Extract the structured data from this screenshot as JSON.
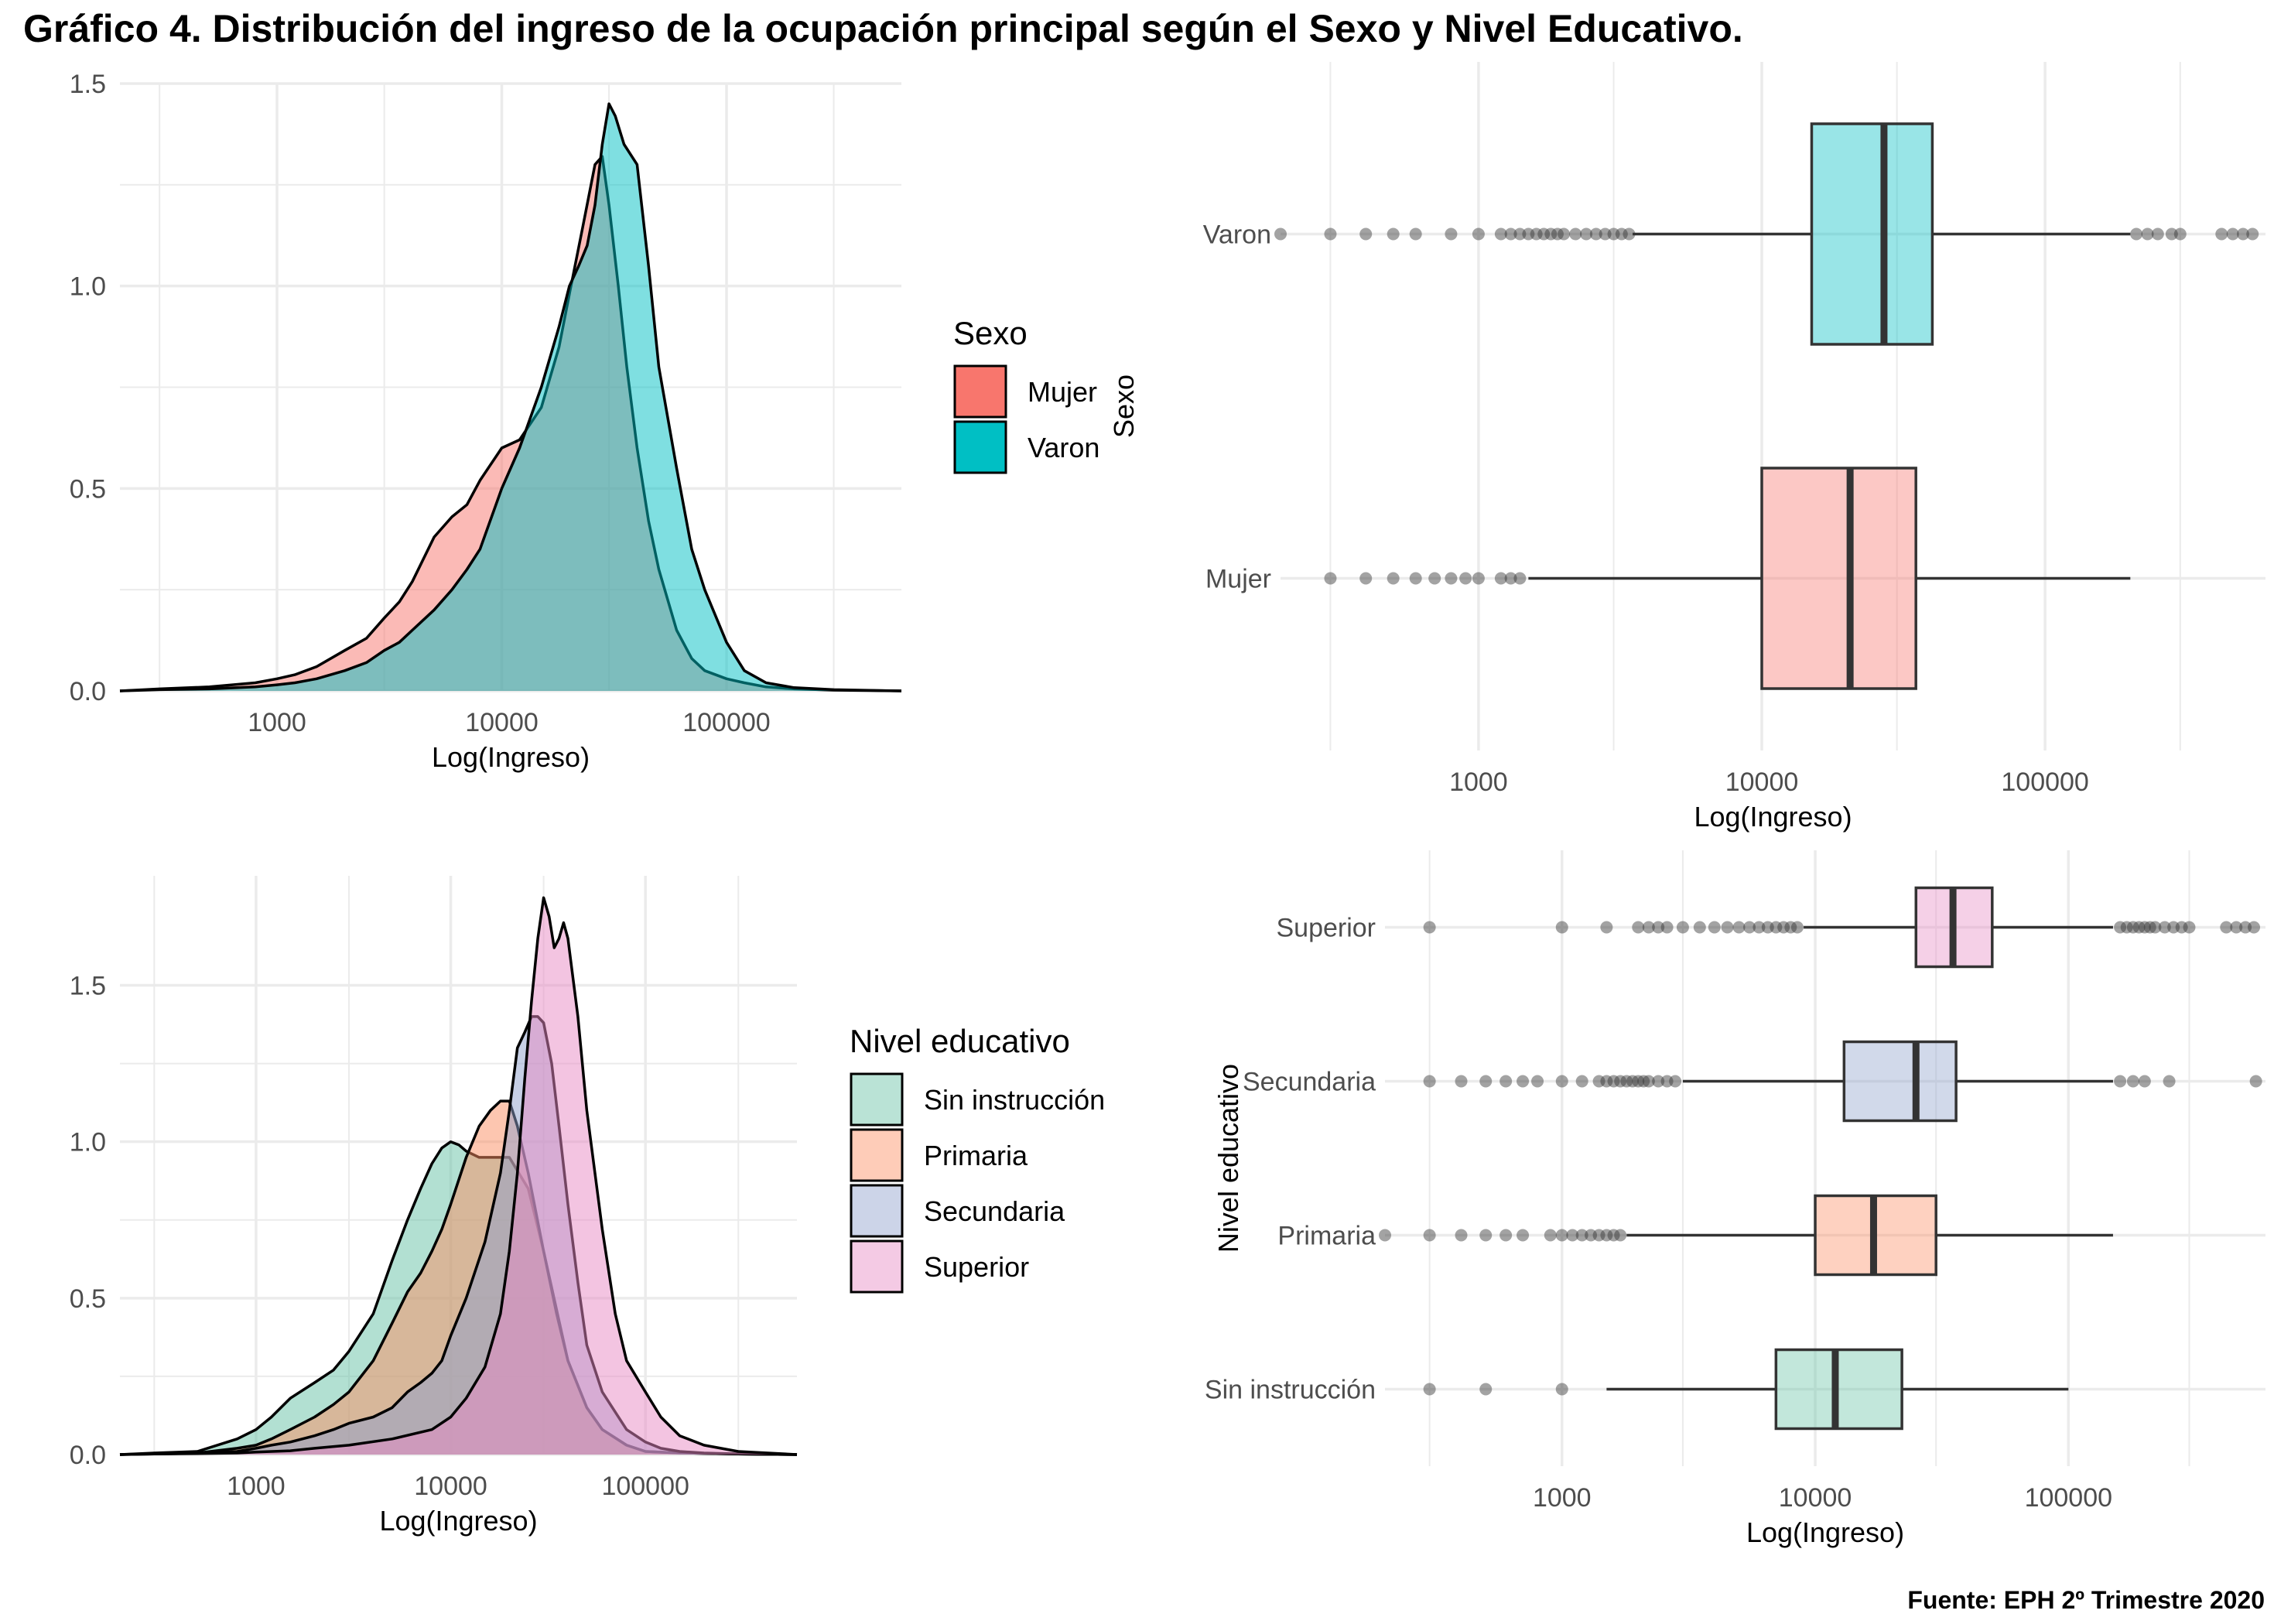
{
  "title": "Gráfico 4. Distribución del ingreso de la ocupación principal según el Sexo y Nivel Educativo.",
  "caption": "Fuente: EPH 2º Trimestre 2020",
  "colors": {
    "Mujer": "#F8766D",
    "Varon": "#00BFC4",
    "Sin instrucción": "#66C2A5",
    "Primaria": "#FC8D62",
    "Secundaria": "#8DA0CB",
    "Superior": "#E78AC3",
    "grid": "#ebebeb",
    "line": "#000000",
    "outlier": "#333333"
  },
  "chart_data": [
    {
      "id": "density_sexo",
      "type": "area",
      "xscale": "log10",
      "xlabel": "Log(Ingreso)",
      "ylabel": "",
      "xlim": [
        200,
        600000
      ],
      "ylim": [
        0,
        1.5
      ],
      "xticks": [
        1000,
        10000,
        100000
      ],
      "xtick_labels": [
        "1000",
        "10000",
        "100000"
      ],
      "yticks": [
        0,
        0.5,
        1,
        1.5
      ],
      "ytick_labels": [
        "0.0",
        "0.5",
        "1.0",
        "1.5"
      ],
      "grid": true,
      "legend": {
        "title": "Sexo",
        "position": "right"
      },
      "series": [
        {
          "name": "Mujer",
          "x": [
            200,
            300,
            500,
            800,
            1000,
            1200,
            1500,
            2000,
            2500,
            3000,
            3500,
            4000,
            5000,
            6000,
            7000,
            8000,
            10000,
            12000,
            15000,
            18000,
            20000,
            23000,
            26000,
            28000,
            30000,
            33000,
            36000,
            40000,
            45000,
            50000,
            60000,
            70000,
            80000,
            100000,
            120000,
            150000,
            200000,
            300000,
            600000
          ],
          "y": [
            0,
            0.005,
            0.01,
            0.02,
            0.03,
            0.04,
            0.06,
            0.1,
            0.13,
            0.18,
            0.22,
            0.27,
            0.38,
            0.43,
            0.46,
            0.52,
            0.6,
            0.62,
            0.7,
            0.85,
            0.98,
            1.15,
            1.3,
            1.32,
            1.2,
            1.0,
            0.8,
            0.6,
            0.42,
            0.3,
            0.15,
            0.08,
            0.05,
            0.03,
            0.02,
            0.01,
            0.005,
            0.002,
            0
          ]
        },
        {
          "name": "Varon",
          "x": [
            200,
            300,
            500,
            800,
            1000,
            1200,
            1500,
            2000,
            2500,
            3000,
            3500,
            4000,
            5000,
            6000,
            7000,
            8000,
            10000,
            12000,
            15000,
            18000,
            20000,
            22000,
            24000,
            26000,
            28000,
            30000,
            32000,
            35000,
            40000,
            45000,
            50000,
            60000,
            70000,
            80000,
            100000,
            120000,
            150000,
            200000,
            300000,
            600000
          ],
          "y": [
            0,
            0.003,
            0.005,
            0.01,
            0.015,
            0.02,
            0.03,
            0.05,
            0.07,
            0.1,
            0.12,
            0.15,
            0.2,
            0.25,
            0.3,
            0.35,
            0.5,
            0.6,
            0.75,
            0.9,
            1.0,
            1.05,
            1.1,
            1.2,
            1.35,
            1.45,
            1.42,
            1.35,
            1.3,
            1.05,
            0.8,
            0.55,
            0.35,
            0.25,
            0.12,
            0.05,
            0.02,
            0.008,
            0.003,
            0
          ]
        }
      ]
    },
    {
      "id": "boxplot_sexo",
      "type": "boxplot",
      "xscale": "log10",
      "xlabel": "Log(Ingreso)",
      "ylabel": "Sexo",
      "xlim": [
        200,
        600000
      ],
      "xticks": [
        1000,
        10000,
        100000
      ],
      "xtick_labels": [
        "1000",
        "10000",
        "100000"
      ],
      "categories": [
        "Mujer",
        "Varon"
      ],
      "grid": true,
      "boxes": [
        {
          "name": "Mujer",
          "whisker_low": 1500,
          "q1": 10000,
          "median": 20500,
          "q3": 35000,
          "whisker_high": 200000,
          "outliers": [
            300,
            400,
            500,
            600,
            700,
            800,
            900,
            1000,
            1200,
            1300,
            1400
          ]
        },
        {
          "name": "Varon",
          "whisker_low": 3500,
          "q1": 15000,
          "median": 27000,
          "q3": 40000,
          "whisker_high": 200000,
          "outliers": [
            200,
            300,
            400,
            500,
            600,
            800,
            1000,
            1200,
            1300,
            1400,
            1500,
            1600,
            1700,
            1800,
            1900,
            2000,
            2200,
            2400,
            2600,
            2800,
            3000,
            3200,
            3400,
            210000,
            230000,
            250000,
            280000,
            300000,
            420000,
            460000,
            500000,
            540000
          ]
        }
      ]
    },
    {
      "id": "density_nivel",
      "type": "area",
      "xscale": "log10",
      "xlabel": "Log(Ingreso)",
      "ylabel": "",
      "xlim": [
        200,
        600000
      ],
      "ylim": [
        0,
        1.85
      ],
      "xticks": [
        1000,
        10000,
        100000
      ],
      "xtick_labels": [
        "1000",
        "10000",
        "100000"
      ],
      "yticks": [
        0,
        0.5,
        1,
        1.5
      ],
      "ytick_labels": [
        "0.0",
        "0.5",
        "1.0",
        "1.5"
      ],
      "grid": true,
      "legend": {
        "title": "Nivel educativo",
        "position": "right"
      },
      "series": [
        {
          "name": "Sin instrucción",
          "x": [
            200,
            300,
            500,
            800,
            1000,
            1200,
            1500,
            2000,
            2500,
            3000,
            4000,
            5000,
            6000,
            7000,
            8000,
            9000,
            10000,
            11000,
            12000,
            14000,
            16000,
            20000,
            25000,
            30000,
            40000,
            50000,
            60000,
            80000,
            100000,
            150000,
            300000,
            600000
          ],
          "y": [
            0,
            0.005,
            0.01,
            0.05,
            0.08,
            0.12,
            0.18,
            0.23,
            0.27,
            0.33,
            0.45,
            0.62,
            0.75,
            0.85,
            0.93,
            0.98,
            1.0,
            0.99,
            0.97,
            0.95,
            0.95,
            0.95,
            0.85,
            0.65,
            0.3,
            0.15,
            0.08,
            0.03,
            0.01,
            0.005,
            0.002,
            0
          ]
        },
        {
          "name": "Primaria",
          "x": [
            200,
            300,
            500,
            800,
            1000,
            1200,
            1500,
            2000,
            2500,
            3000,
            4000,
            5000,
            6000,
            7000,
            8000,
            9000,
            10000,
            12000,
            14000,
            16000,
            18000,
            20000,
            22000,
            25000,
            30000,
            35000,
            40000,
            50000,
            60000,
            80000,
            100000,
            150000,
            300000,
            600000
          ],
          "y": [
            0,
            0.003,
            0.005,
            0.02,
            0.03,
            0.05,
            0.08,
            0.12,
            0.16,
            0.2,
            0.3,
            0.42,
            0.52,
            0.58,
            0.65,
            0.72,
            0.8,
            0.95,
            1.05,
            1.1,
            1.13,
            1.13,
            1.05,
            0.9,
            0.65,
            0.45,
            0.3,
            0.15,
            0.08,
            0.03,
            0.01,
            0.005,
            0.002,
            0
          ]
        },
        {
          "name": "Secundaria",
          "x": [
            200,
            300,
            500,
            800,
            1000,
            1200,
            1500,
            2000,
            2500,
            3000,
            4000,
            5000,
            6000,
            7000,
            8000,
            9000,
            10000,
            12000,
            15000,
            18000,
            20000,
            22000,
            24000,
            26000,
            28000,
            30000,
            33000,
            36000,
            40000,
            45000,
            50000,
            60000,
            80000,
            100000,
            120000,
            150000,
            200000,
            300000,
            600000
          ],
          "y": [
            0,
            0.002,
            0.004,
            0.01,
            0.02,
            0.03,
            0.04,
            0.06,
            0.08,
            0.1,
            0.12,
            0.15,
            0.2,
            0.23,
            0.26,
            0.3,
            0.38,
            0.5,
            0.68,
            0.9,
            1.1,
            1.3,
            1.35,
            1.4,
            1.4,
            1.38,
            1.25,
            1.05,
            0.8,
            0.55,
            0.35,
            0.2,
            0.08,
            0.04,
            0.02,
            0.01,
            0.005,
            0.002,
            0
          ]
        },
        {
          "name": "Superior",
          "x": [
            200,
            300,
            500,
            800,
            1000,
            1500,
            2000,
            3000,
            5000,
            8000,
            10000,
            12000,
            15000,
            18000,
            20000,
            22000,
            24000,
            26000,
            28000,
            30000,
            32000,
            34000,
            36000,
            38000,
            40000,
            45000,
            50000,
            60000,
            70000,
            80000,
            100000,
            120000,
            150000,
            200000,
            300000,
            600000
          ],
          "y": [
            0,
            0.002,
            0.003,
            0.005,
            0.008,
            0.012,
            0.02,
            0.03,
            0.05,
            0.08,
            0.12,
            0.18,
            0.28,
            0.45,
            0.65,
            0.9,
            1.2,
            1.45,
            1.65,
            1.78,
            1.72,
            1.62,
            1.65,
            1.7,
            1.65,
            1.4,
            1.1,
            0.72,
            0.45,
            0.3,
            0.2,
            0.12,
            0.06,
            0.03,
            0.01,
            0
          ]
        }
      ]
    },
    {
      "id": "boxplot_nivel",
      "type": "boxplot",
      "xscale": "log10",
      "xlabel": "Log(Ingreso)",
      "ylabel": "Nivel educativo",
      "xlim": [
        200,
        600000
      ],
      "xticks": [
        1000,
        10000,
        100000
      ],
      "xtick_labels": [
        "1000",
        "10000",
        "100000"
      ],
      "categories": [
        "Sin instrucción",
        "Primaria",
        "Secundaria",
        "Superior"
      ],
      "grid": true,
      "boxes": [
        {
          "name": "Sin instrucción",
          "whisker_low": 1500,
          "q1": 7000,
          "median": 12000,
          "q3": 22000,
          "whisker_high": 100000,
          "outliers": [
            300,
            500,
            1000
          ]
        },
        {
          "name": "Primaria",
          "whisker_low": 1800,
          "q1": 10000,
          "median": 17000,
          "q3": 30000,
          "whisker_high": 150000,
          "outliers": [
            200,
            300,
            400,
            500,
            600,
            700,
            900,
            1000,
            1100,
            1200,
            1300,
            1400,
            1500,
            1600,
            1700
          ]
        },
        {
          "name": "Secundaria",
          "whisker_low": 3000,
          "q1": 13000,
          "median": 25000,
          "q3": 36000,
          "whisker_high": 150000,
          "outliers": [
            300,
            400,
            500,
            600,
            700,
            800,
            1000,
            1200,
            1400,
            1500,
            1600,
            1700,
            1800,
            1900,
            2000,
            2100,
            2200,
            2400,
            2600,
            2800,
            160000,
            180000,
            200000,
            250000,
            550000
          ]
        },
        {
          "name": "Superior",
          "whisker_low": 9000,
          "q1": 25000,
          "median": 35000,
          "q3": 50000,
          "whisker_high": 150000,
          "outliers": [
            300,
            1000,
            1500,
            2000,
            2200,
            2400,
            2600,
            3000,
            3500,
            4000,
            4500,
            5000,
            5500,
            6000,
            6500,
            7000,
            7500,
            8000,
            8500,
            160000,
            170000,
            180000,
            190000,
            200000,
            210000,
            220000,
            240000,
            260000,
            280000,
            300000,
            420000,
            460000,
            500000,
            540000
          ]
        }
      ]
    }
  ]
}
